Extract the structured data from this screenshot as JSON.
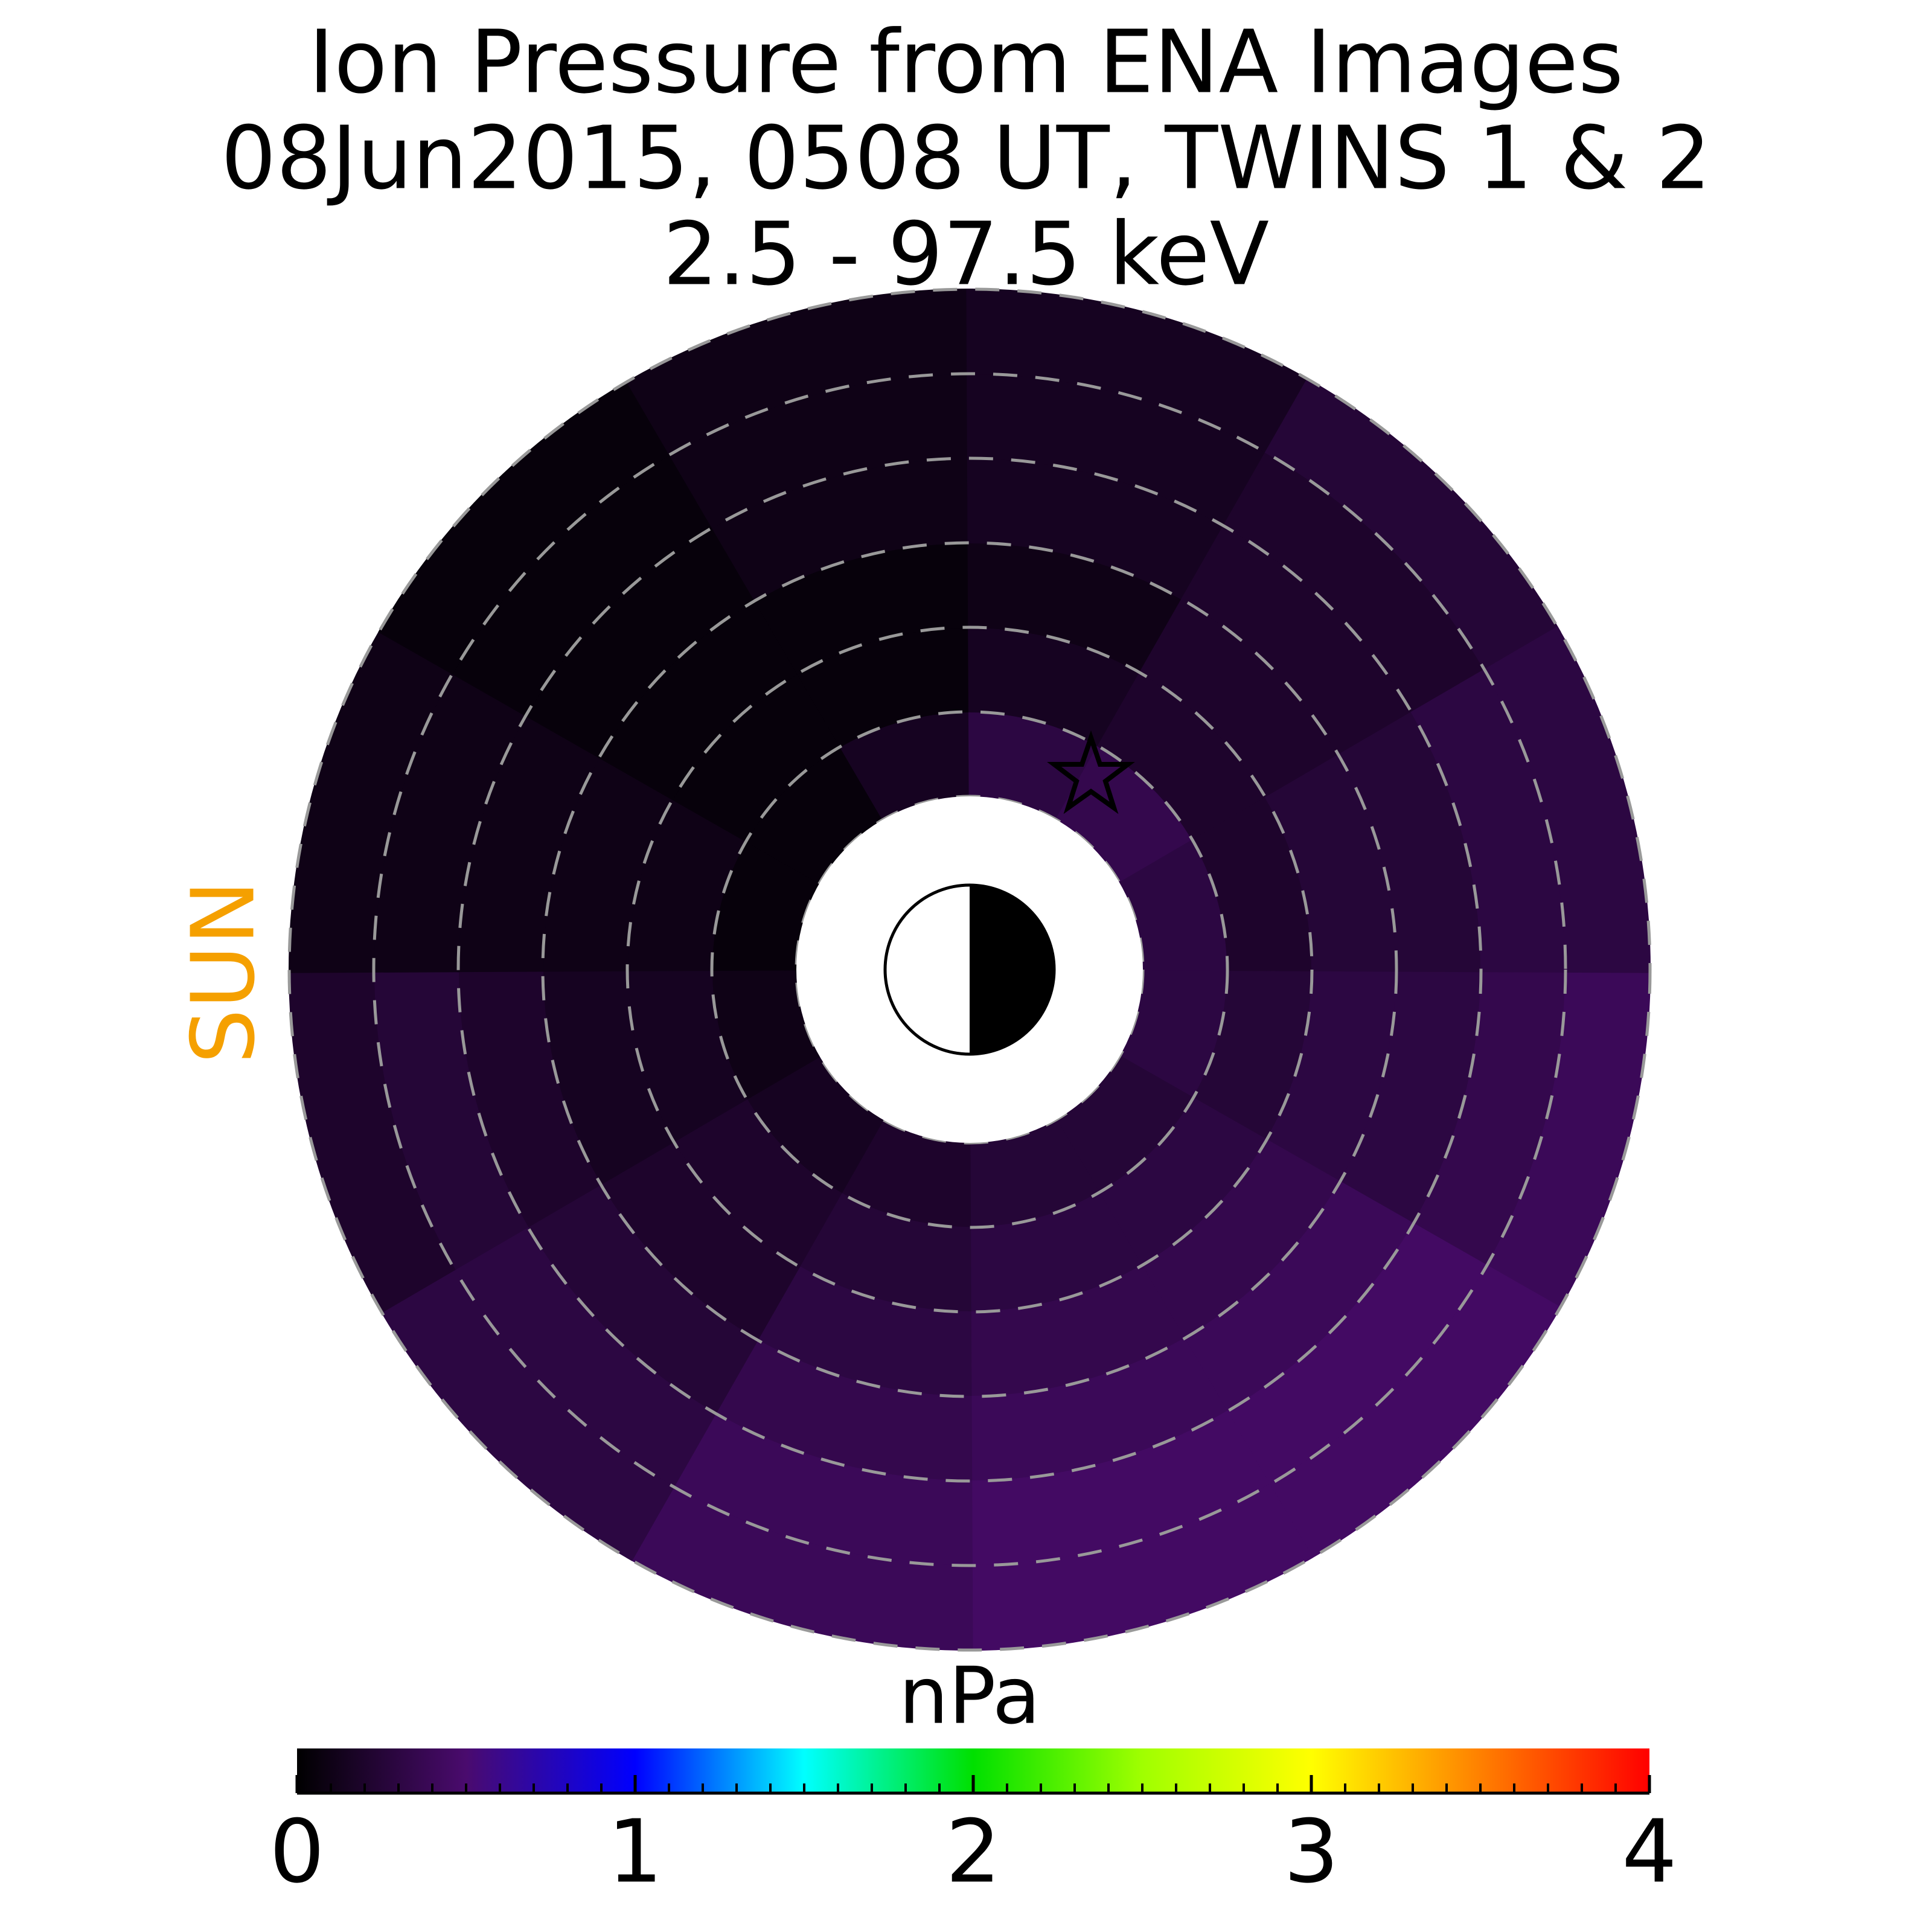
{
  "chart_data": {
    "type": "polar_heatmap",
    "title": [
      "Ion Pressure from  ENA Images",
      "08Jun2015, 0508 UT,  TWINS 1 & 2",
      "2.5 - 97.5 keV"
    ],
    "sun_label": "SUN",
    "colorbar_label": "nPa",
    "sun_label_color": "#f5a000",
    "colormap": [
      "#000000",
      "#4a0b6e",
      "#0000ff",
      "#00ffff",
      "#00e000",
      "#a0ff00",
      "#ffff00",
      "#ff8000",
      "#ff0000"
    ],
    "clim": [
      0,
      4
    ],
    "cticks": [
      0,
      1,
      2,
      3,
      4
    ],
    "values": [
      [
        0.3,
        0.25,
        0.3,
        0.3,
        0.35,
        0.4
      ],
      [
        0.25,
        0.3,
        0.35,
        0.4,
        0.45,
        0.45
      ],
      [
        0.25,
        0.3,
        0.35,
        0.4,
        0.45,
        0.45
      ],
      [
        0.2,
        0.25,
        0.3,
        0.35,
        0.4,
        0.4
      ],
      [
        0.15,
        0.2,
        0.2,
        0.25,
        0.3,
        0.3
      ],
      [
        0.1,
        0.15,
        0.15,
        0.2,
        0.25,
        0.2
      ],
      [
        0.05,
        0.1,
        0.1,
        0.1,
        0.1,
        0.1
      ],
      [
        0.05,
        0.05,
        0.05,
        0.05,
        0.05,
        0.05
      ],
      [
        0.15,
        0.05,
        0.05,
        0.1,
        0.1,
        0.1
      ],
      [
        0.3,
        0.15,
        0.1,
        0.15,
        0.15,
        0.15
      ],
      [
        0.35,
        0.2,
        0.2,
        0.2,
        0.2,
        0.25
      ],
      [
        0.3,
        0.2,
        0.25,
        0.25,
        0.3,
        0.3
      ]
    ]
  }
}
